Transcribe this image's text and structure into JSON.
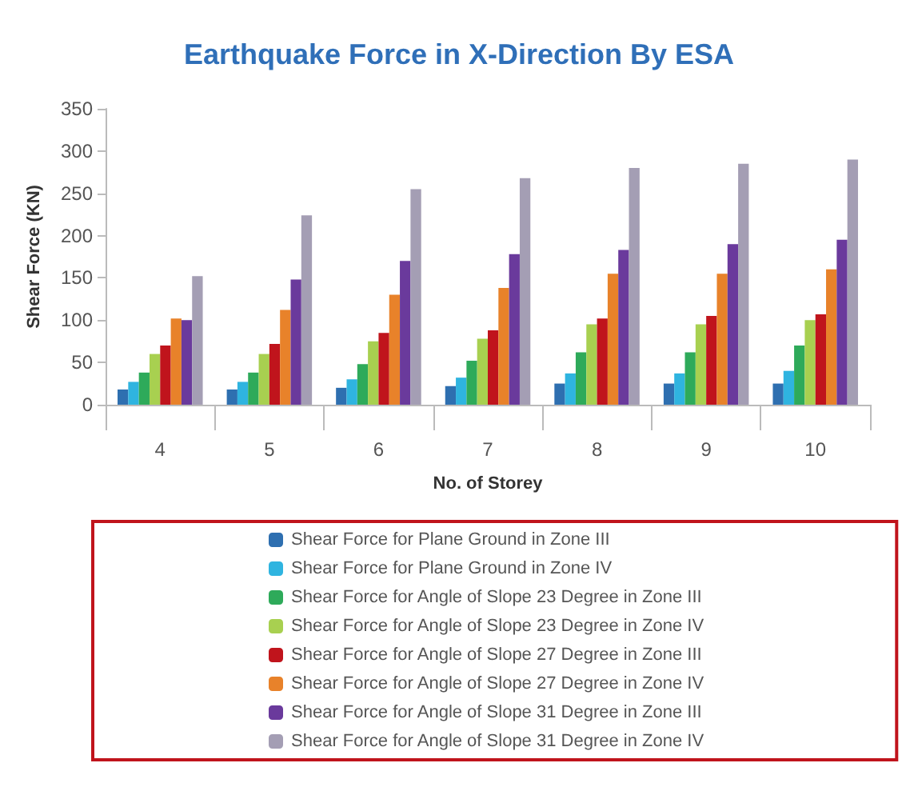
{
  "chart_data": {
    "type": "bar",
    "title": "Earthquake Force in X-Direction By ESA",
    "xlabel": "No. of Storey",
    "ylabel": "Shear Force (KN)",
    "categories": [
      "4",
      "5",
      "6",
      "7",
      "8",
      "9",
      "10"
    ],
    "series": [
      {
        "name": "Shear Force for Plane Ground in Zone III",
        "color": "#2e6fb0",
        "values": [
          18,
          18,
          20,
          22,
          25,
          25,
          25
        ]
      },
      {
        "name": "Shear Force for Plane Ground in Zone IV",
        "color": "#2fb4e0",
        "values": [
          27,
          27,
          30,
          32,
          37,
          37,
          40
        ]
      },
      {
        "name": "Shear Force for Angle of Slope 23 Degree in Zone III",
        "color": "#2eaa5a",
        "values": [
          38,
          38,
          48,
          52,
          62,
          62,
          70
        ]
      },
      {
        "name": "Shear Force for Angle of Slope 23 Degree in Zone IV",
        "color": "#a8d050",
        "values": [
          60,
          60,
          75,
          78,
          95,
          95,
          100
        ]
      },
      {
        "name": "Shear Force for Angle of Slope 27 Degree in Zone III",
        "color": "#c0141c",
        "values": [
          70,
          72,
          85,
          88,
          102,
          105,
          107
        ]
      },
      {
        "name": "Shear Force for Angle of Slope 27 Degree in Zone IV",
        "color": "#e8822a",
        "values": [
          102,
          112,
          130,
          138,
          155,
          155,
          160
        ]
      },
      {
        "name": "Shear Force for Angle of Slope 31 Degree in Zone III",
        "color": "#6a3a9c",
        "values": [
          100,
          148,
          170,
          178,
          183,
          190,
          195
        ]
      },
      {
        "name": "Shear Force for Angle of Slope 31 Degree in Zone IV",
        "color": "#a49eb4",
        "values": [
          152,
          224,
          255,
          268,
          280,
          285,
          290
        ]
      }
    ],
    "ylim": [
      0,
      350
    ],
    "yticks": [
      0,
      50,
      100,
      150,
      200,
      250,
      300,
      350
    ],
    "grid": false,
    "legend": "bottom"
  }
}
